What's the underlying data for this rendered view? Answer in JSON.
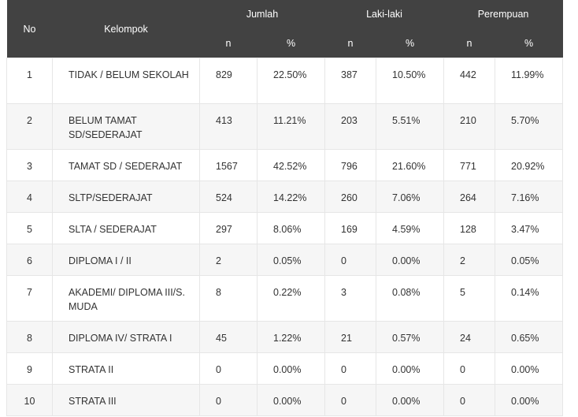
{
  "header": {
    "no": "No",
    "kelompok": "Kelompok",
    "jumlah": "Jumlah",
    "laki": "Laki-laki",
    "perempuan": "Perempuan",
    "n": "n",
    "pct": "%"
  },
  "rows": [
    {
      "no": "1",
      "kelompok": "TIDAK / BELUM SEKOLAH",
      "jumlah_n": "829",
      "jumlah_pct": "22.50%",
      "laki_n": "387",
      "laki_pct": "10.50%",
      "perempuan_n": "442",
      "perempuan_pct": "11.99%"
    },
    {
      "no": "2",
      "kelompok": "BELUM TAMAT SD/SEDERAJAT",
      "jumlah_n": "413",
      "jumlah_pct": "11.21%",
      "laki_n": "203",
      "laki_pct": "5.51%",
      "perempuan_n": "210",
      "perempuan_pct": "5.70%"
    },
    {
      "no": "3",
      "kelompok": "TAMAT SD / SEDERAJAT",
      "jumlah_n": "1567",
      "jumlah_pct": "42.52%",
      "laki_n": "796",
      "laki_pct": "21.60%",
      "perempuan_n": "771",
      "perempuan_pct": "20.92%"
    },
    {
      "no": "4",
      "kelompok": "SLTP/SEDERAJAT",
      "jumlah_n": "524",
      "jumlah_pct": "14.22%",
      "laki_n": "260",
      "laki_pct": "7.06%",
      "perempuan_n": "264",
      "perempuan_pct": "7.16%"
    },
    {
      "no": "5",
      "kelompok": "SLTA / SEDERAJAT",
      "jumlah_n": "297",
      "jumlah_pct": "8.06%",
      "laki_n": "169",
      "laki_pct": "4.59%",
      "perempuan_n": "128",
      "perempuan_pct": "3.47%"
    },
    {
      "no": "6",
      "kelompok": "DIPLOMA I / II",
      "jumlah_n": "2",
      "jumlah_pct": "0.05%",
      "laki_n": "0",
      "laki_pct": "0.00%",
      "perempuan_n": "2",
      "perempuan_pct": "0.05%"
    },
    {
      "no": "7",
      "kelompok": "AKADEMI/ DIPLOMA III/S. MUDA",
      "jumlah_n": "8",
      "jumlah_pct": "0.22%",
      "laki_n": "3",
      "laki_pct": "0.08%",
      "perempuan_n": "5",
      "perempuan_pct": "0.14%"
    },
    {
      "no": "8",
      "kelompok": "DIPLOMA IV/ STRATA I",
      "jumlah_n": "45",
      "jumlah_pct": "1.22%",
      "laki_n": "21",
      "laki_pct": "0.57%",
      "perempuan_n": "24",
      "perempuan_pct": "0.65%"
    },
    {
      "no": "9",
      "kelompok": "STRATA II",
      "jumlah_n": "0",
      "jumlah_pct": "0.00%",
      "laki_n": "0",
      "laki_pct": "0.00%",
      "perempuan_n": "0",
      "perempuan_pct": "0.00%"
    },
    {
      "no": "10",
      "kelompok": "STRATA III",
      "jumlah_n": "0",
      "jumlah_pct": "0.00%",
      "laki_n": "0",
      "laki_pct": "0.00%",
      "perempuan_n": "0",
      "perempuan_pct": "0.00%"
    }
  ]
}
